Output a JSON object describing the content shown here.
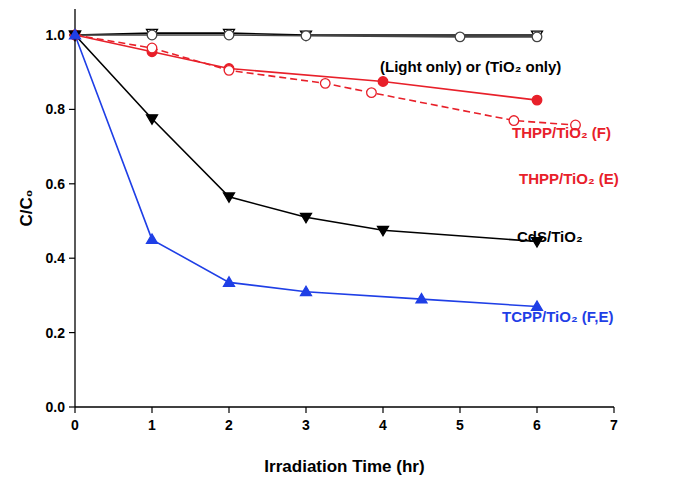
{
  "chart_data": {
    "type": "line",
    "x_label": "Irradiation Time (hr)",
    "y_label": "C/C₀",
    "annotations": [
      "(Light only) or (TiO₂ only)"
    ],
    "xlim": [
      0,
      7
    ],
    "xticks": [
      0,
      1,
      2,
      3,
      4,
      5,
      6,
      7
    ],
    "ylim": [
      0,
      1.07
    ],
    "yticks": [
      {
        "value": 0,
        "label": "0.0"
      },
      0.2,
      0.4,
      0.6,
      0.8,
      {
        "value": 1,
        "label": "1.0"
      }
    ],
    "grid": false,
    "series": [
      {
        "color": "#000000",
        "marker": "triangle-down-open",
        "line_style": "solid",
        "x": [
          0,
          1,
          2,
          3,
          6
        ],
        "values": [
          1.0,
          1.005,
          1.005,
          1.0,
          1.0
        ]
      },
      {
        "color": "#444444",
        "marker": "circle-open",
        "line_style": "solid",
        "x": [
          0,
          1,
          2,
          3,
          5,
          6
        ],
        "values": [
          1.0,
          1.0,
          1.0,
          0.998,
          0.995,
          0.995
        ]
      },
      {
        "name": "THPP/TiO₂ (F)",
        "color": "#e8202a",
        "marker": "circle",
        "line_style": "solid",
        "x": [
          0,
          1,
          2,
          4,
          6
        ],
        "values": [
          1.0,
          0.955,
          0.91,
          0.875,
          0.825
        ]
      },
      {
        "name": "THPP/TiO₂ (E)",
        "color": "#e8202a",
        "marker": "circle-open",
        "line_style": "dashed",
        "x": [
          0,
          1,
          2,
          3.25,
          3.85,
          5.7,
          6.5
        ],
        "values": [
          1.0,
          0.965,
          0.905,
          0.87,
          0.845,
          0.77,
          0.758
        ]
      },
      {
        "name": "CdS/TiO₂",
        "color": "#000000",
        "marker": "triangle-down",
        "line_style": "solid",
        "x": [
          0,
          1,
          2,
          3,
          4,
          6
        ],
        "values": [
          1.0,
          0.775,
          0.565,
          0.51,
          0.475,
          0.445
        ]
      },
      {
        "name": "TCPP/TiO₂ (F,E)",
        "color": "#1f3fe6",
        "marker": "triangle",
        "line_style": "solid",
        "x": [
          0,
          1,
          2,
          3,
          4.5,
          6
        ],
        "values": [
          1.0,
          0.45,
          0.335,
          0.31,
          0.29,
          0.27
        ]
      }
    ]
  }
}
